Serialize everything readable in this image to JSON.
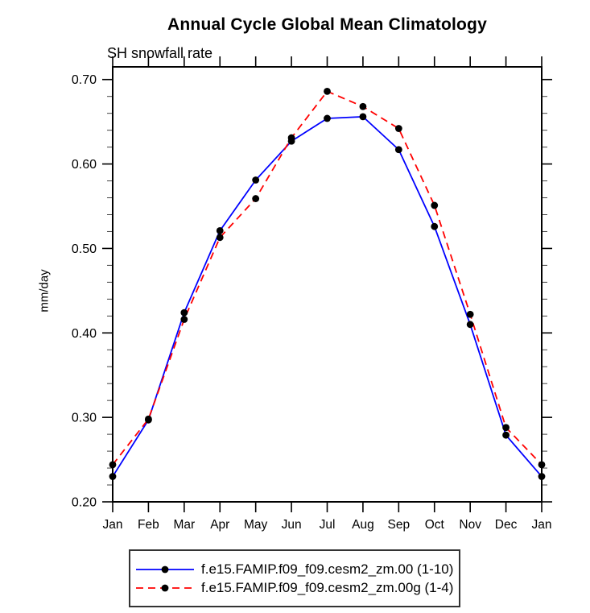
{
  "header": {
    "title": "Annual Cycle Global Mean Climatology",
    "subtitle": "SH snowfall rate"
  },
  "axes": {
    "y_axis_title": "mm/day",
    "y_tick_labels": [
      "0.20",
      "0.30",
      "0.40",
      "0.50",
      "0.60",
      "0.70"
    ],
    "x_tick_labels": [
      "Jan",
      "Feb",
      "Mar",
      "Apr",
      "May",
      "Jun",
      "Jul",
      "Aug",
      "Sep",
      "Oct",
      "Nov",
      "Dec",
      "Jan"
    ]
  },
  "legend": {
    "entries": [
      "f.e15.FAMIP.f09_f09.cesm2_zm.00 (1-10)",
      "f.e15.FAMIP.f09_f09.cesm2_zm.00g (1-4)"
    ]
  },
  "colors": {
    "series1": "#0000ff",
    "series2": "#ff0000",
    "marker": "#000000",
    "axis": "#000000",
    "minor_tick": "#444444"
  },
  "chart_data": {
    "type": "line",
    "title": "Annual Cycle Global Mean Climatology",
    "subtitle": "SH snowfall rate",
    "xlabel": "",
    "ylabel": "mm/day",
    "categories": [
      "Jan",
      "Feb",
      "Mar",
      "Apr",
      "May",
      "Jun",
      "Jul",
      "Aug",
      "Sep",
      "Oct",
      "Nov",
      "Dec",
      "Jan"
    ],
    "series": [
      {
        "name": "f.e15.FAMIP.f09_f09.cesm2_zm.00 (1-10)",
        "color": "#0000ff",
        "line_style": "solid",
        "marker": "filled-black-circle",
        "values": [
          0.23,
          0.297,
          0.424,
          0.521,
          0.581,
          0.627,
          0.654,
          0.656,
          0.617,
          0.526,
          0.41,
          0.279,
          0.23
        ]
      },
      {
        "name": "f.e15.FAMIP.f09_f09.cesm2_zm.00g (1-4)",
        "color": "#ff0000",
        "line_style": "dashed",
        "marker": "filled-black-circle",
        "values": [
          0.244,
          0.298,
          0.416,
          0.513,
          0.559,
          0.631,
          0.686,
          0.668,
          0.642,
          0.551,
          0.422,
          0.288,
          0.244
        ]
      }
    ],
    "ylim": [
      0.2,
      0.715
    ],
    "y_major_ticks": [
      0.2,
      0.3,
      0.4,
      0.5,
      0.6,
      0.7
    ],
    "y_major_tick_labels": [
      "0.20",
      "0.30",
      "0.40",
      "0.50",
      "0.60",
      "0.70"
    ],
    "y_minor_tick_step": 0.02,
    "grid": false,
    "tick_direction": "out",
    "legend_position": "bottom"
  }
}
